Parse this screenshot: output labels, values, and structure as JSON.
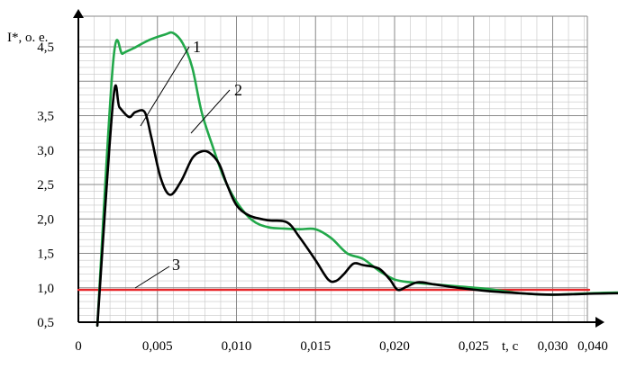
{
  "chart_data": {
    "type": "line",
    "title": "",
    "xlabel": "t, с",
    "ylabel": "I*, о. е.",
    "xlim": [
      0,
      0.04
    ],
    "ylim": [
      0.5,
      4.7
    ],
    "x_ticks": [
      "0",
      "0,005",
      "0,010",
      "0,015",
      "0,020",
      "0,025",
      "0,030",
      "0,040"
    ],
    "x_tick_values": [
      0,
      0.005,
      0.01,
      0.015,
      0.02,
      0.025,
      0.03,
      0.04
    ],
    "y_ticks": [
      "0,5",
      "1,0",
      "1,5",
      "2,0",
      "2,5",
      "3,0",
      "3,5",
      "4,5"
    ],
    "y_tick_values": [
      0.5,
      1.0,
      1.5,
      2.0,
      2.5,
      3.0,
      3.5,
      4.5
    ],
    "grid": true,
    "series": [
      {
        "name": "1",
        "color": "#000000",
        "x": [
          0.0012,
          0.0022,
          0.0026,
          0.0032,
          0.0036,
          0.0042,
          0.0046,
          0.0052,
          0.0058,
          0.0065,
          0.0072,
          0.0078,
          0.0083,
          0.0089,
          0.0094,
          0.01,
          0.0108,
          0.012,
          0.0132,
          0.014,
          0.015,
          0.0158,
          0.0163,
          0.0168,
          0.0174,
          0.018,
          0.019,
          0.0197,
          0.0202,
          0.0208,
          0.0215,
          0.0225,
          0.024,
          0.026,
          0.028,
          0.03,
          0.034,
          0.04
        ],
        "y": [
          0.45,
          3.72,
          3.62,
          3.48,
          3.55,
          3.55,
          3.2,
          2.6,
          2.35,
          2.55,
          2.88,
          2.98,
          2.96,
          2.8,
          2.5,
          2.2,
          2.05,
          1.98,
          1.95,
          1.73,
          1.4,
          1.12,
          1.1,
          1.2,
          1.35,
          1.33,
          1.28,
          1.12,
          0.97,
          1.02,
          1.08,
          1.05,
          1.0,
          0.95,
          0.92,
          0.9,
          0.92,
          0.92
        ]
      },
      {
        "name": "2",
        "color": "#22a84a",
        "x": [
          0.0012,
          0.0022,
          0.0028,
          0.0035,
          0.0045,
          0.0055,
          0.006,
          0.0066,
          0.0072,
          0.0078,
          0.0085,
          0.0092,
          0.01,
          0.011,
          0.012,
          0.013,
          0.014,
          0.015,
          0.016,
          0.017,
          0.018,
          0.019,
          0.02,
          0.021,
          0.022,
          0.024,
          0.026,
          0.028,
          0.03,
          0.034,
          0.04
        ],
        "y": [
          0.45,
          4.28,
          4.4,
          4.48,
          4.6,
          4.68,
          4.7,
          4.55,
          4.2,
          3.55,
          3.05,
          2.6,
          2.25,
          1.98,
          1.88,
          1.86,
          1.85,
          1.85,
          1.72,
          1.5,
          1.42,
          1.25,
          1.12,
          1.08,
          1.06,
          1.02,
          0.98,
          0.92,
          0.9,
          0.93,
          0.93
        ]
      },
      {
        "name": "3",
        "color": "#e8262a",
        "x": [
          0,
          0.04
        ],
        "y": [
          0.97,
          0.97
        ]
      }
    ]
  }
}
